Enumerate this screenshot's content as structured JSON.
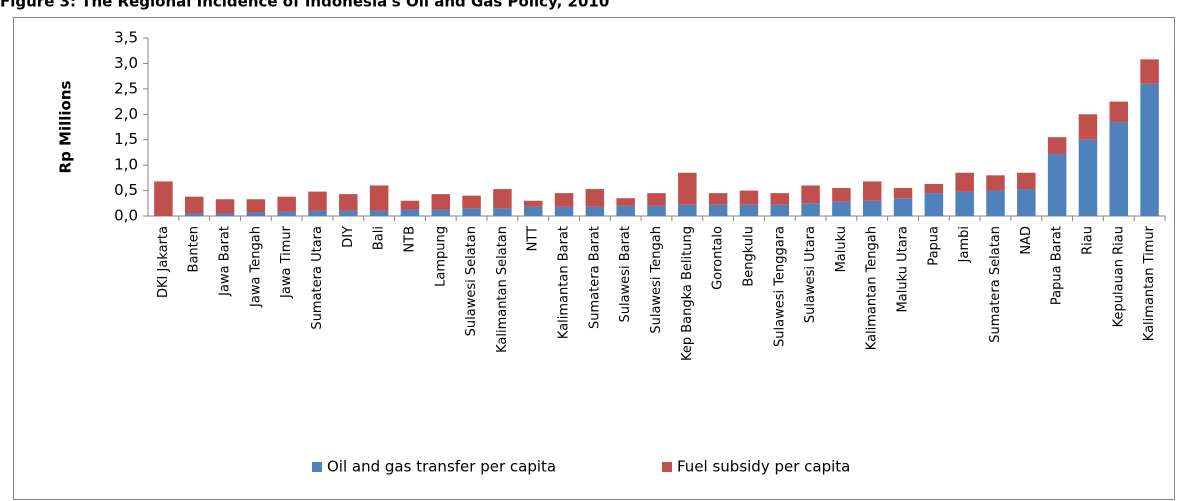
{
  "chart_data": {
    "type": "stacked-bar",
    "title": "Figure 3: The Regional Incidence of Indonesia's Oil and Gas Policy, 2010",
    "y_label": "Rp Millions",
    "categories": [
      "DKI Jakarta",
      "Banten",
      "Jawa Barat",
      "Jawa Tengah",
      "Jawa Timur",
      "Sumatera Utara",
      "DIY",
      "Bali",
      "NTB",
      "Lampung",
      "Sulawesi Selatan",
      "Kalimantan Selatan",
      "NTT",
      "Kalimantan Barat",
      "Sumatera Barat",
      "Sulawesi Barat",
      "Sulawesi Tengah",
      "Kep Bangka Belitung",
      "Gorontalo",
      "Bengkulu",
      "Sulawesi Tenggara",
      "Sulawesi Utara",
      "Maluku",
      "Kalimantan Tengah",
      "Maluku Utara",
      "Papua",
      "Jambi",
      "Sumatera Selatan",
      "NAD",
      "Papua Barat",
      "Riau",
      "Kepulauan Riau",
      "Kalimantan Timur"
    ],
    "series": [
      {
        "name": "Oil and gas transfer per capita",
        "color": "#4f81bd",
        "values": [
          0.0,
          0.05,
          0.05,
          0.07,
          0.08,
          0.1,
          0.1,
          0.1,
          0.12,
          0.12,
          0.15,
          0.15,
          0.18,
          0.18,
          0.18,
          0.2,
          0.2,
          0.22,
          0.22,
          0.22,
          0.22,
          0.25,
          0.28,
          0.3,
          0.35,
          0.45,
          0.48,
          0.5,
          0.53,
          1.22,
          1.5,
          1.85,
          2.6
        ]
      },
      {
        "name": "Fuel subsidy per capita",
        "color": "#c0504d",
        "values": [
          0.68,
          0.33,
          0.28,
          0.26,
          0.3,
          0.38,
          0.33,
          0.5,
          0.18,
          0.31,
          0.25,
          0.38,
          0.12,
          0.27,
          0.35,
          0.15,
          0.25,
          0.63,
          0.23,
          0.28,
          0.23,
          0.35,
          0.27,
          0.38,
          0.2,
          0.18,
          0.37,
          0.3,
          0.32,
          0.33,
          0.5,
          0.4,
          0.48
        ]
      }
    ],
    "ylim": [
      0,
      3.5
    ],
    "yticks": [
      {
        "value": 0,
        "label": "0,0"
      },
      {
        "value": 0.5,
        "label": "0,5"
      },
      {
        "value": 1,
        "label": "1,0"
      },
      {
        "value": 1.5,
        "label": "1,5"
      },
      {
        "value": 2,
        "label": "2,0"
      },
      {
        "value": 2.5,
        "label": "2,5"
      },
      {
        "value": 3,
        "label": "3,0"
      },
      {
        "value": 3.5,
        "label": "3,5"
      }
    ],
    "legend": "bottom"
  }
}
